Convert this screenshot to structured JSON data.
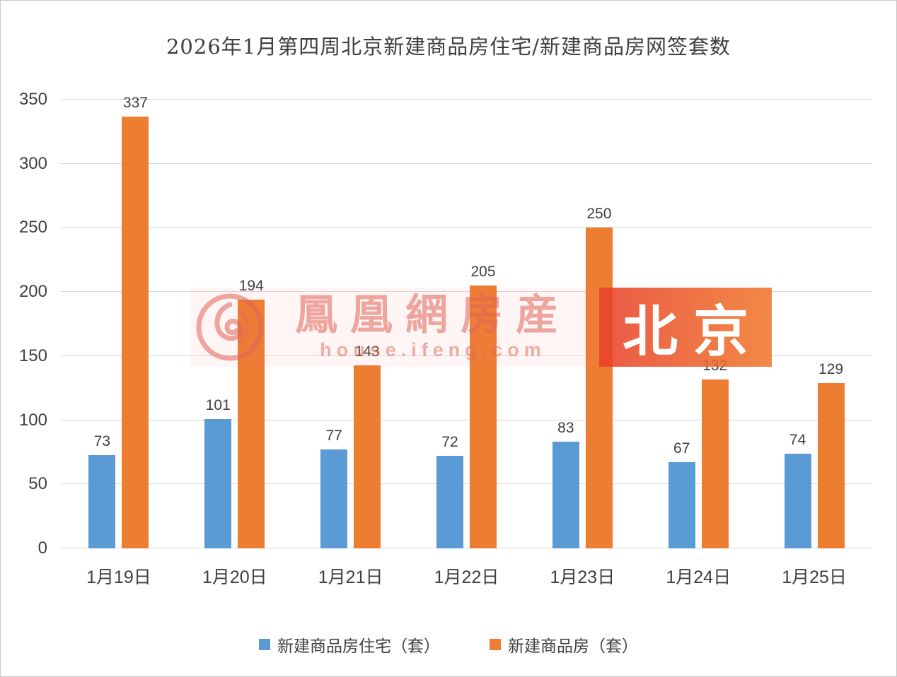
{
  "title": "2026年1月第四周北京新建商品房住宅/新建商品房网签套数",
  "watermark": {
    "brand": "鳳凰網房産",
    "url": "house.ifeng.com",
    "badge": "北京"
  },
  "colors": {
    "series1_blue": "#5B9BD5",
    "series2_orange": "#ED7D31",
    "watermark_red": "#E0574A",
    "gridline": "#D9D9D9",
    "text": "#404040"
  },
  "chart_data": {
    "type": "bar",
    "title": "2026年1月第四周北京新建商品房住宅/新建商品房网签套数",
    "categories": [
      "1月19日",
      "1月20日",
      "1月21日",
      "1月22日",
      "1月23日",
      "1月24日",
      "1月25日"
    ],
    "series": [
      {
        "name": "新建商品房住宅（套）",
        "color": "#5B9BD5",
        "values": [
          73,
          101,
          77,
          72,
          83,
          67,
          74
        ]
      },
      {
        "name": "新建商品房（套）",
        "color": "#ED7D31",
        "values": [
          337,
          194,
          143,
          205,
          250,
          132,
          129
        ]
      }
    ],
    "xlabel": "",
    "ylabel": "",
    "ylim": [
      0,
      350
    ],
    "ytick_step": 50,
    "grid": true,
    "legend_position": "bottom"
  }
}
